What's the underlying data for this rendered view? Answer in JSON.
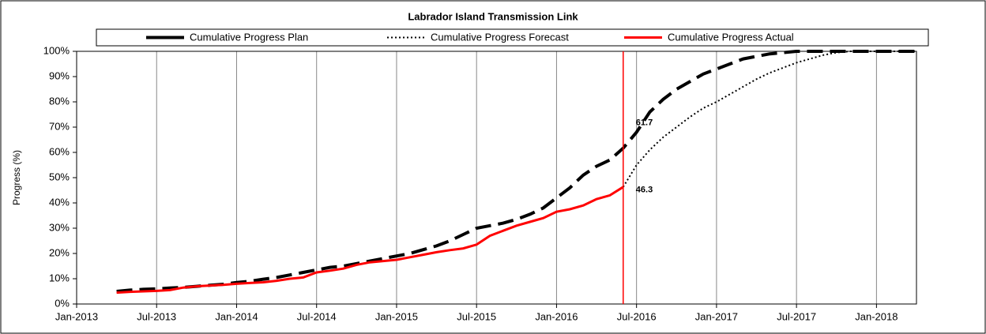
{
  "chart_data": {
    "type": "line",
    "title": "Labrador Island Transmission Link",
    "y_label": "Progress (%)",
    "x": [
      "2013-04",
      "2013-05",
      "2013-06",
      "2013-07",
      "2013-08",
      "2013-09",
      "2013-10",
      "2013-11",
      "2013-12",
      "2014-01",
      "2014-02",
      "2014-03",
      "2014-04",
      "2014-05",
      "2014-06",
      "2014-07",
      "2014-08",
      "2014-09",
      "2014-10",
      "2014-11",
      "2014-12",
      "2015-01",
      "2015-02",
      "2015-03",
      "2015-04",
      "2015-05",
      "2015-06",
      "2015-07",
      "2015-08",
      "2015-09",
      "2015-10",
      "2015-11",
      "2015-12",
      "2016-01",
      "2016-02",
      "2016-03",
      "2016-04",
      "2016-05",
      "2016-06",
      "2016-07",
      "2016-08",
      "2016-09",
      "2016-10",
      "2016-11",
      "2016-12",
      "2017-01",
      "2017-02",
      "2017-03",
      "2017-04",
      "2017-05",
      "2017-06",
      "2017-07",
      "2017-08",
      "2017-09",
      "2017-10",
      "2017-11",
      "2017-12",
      "2018-01",
      "2018-02",
      "2018-03",
      "2018-04"
    ],
    "series": [
      {
        "name": "Cumulative Progress Plan",
        "color": "#000000",
        "style": "dashed",
        "values": [
          5,
          5.5,
          5.8,
          6,
          6.3,
          6.6,
          7,
          7.4,
          7.8,
          8.5,
          9,
          9.8,
          10.5,
          11.5,
          12.5,
          13.5,
          14.5,
          15,
          16,
          17,
          18,
          19,
          20,
          21.5,
          23,
          25,
          27.5,
          30,
          31,
          32,
          33.5,
          35.5,
          38,
          42,
          46,
          51,
          54.5,
          57,
          61.7,
          68,
          76,
          81,
          85,
          88,
          91,
          93,
          95,
          97,
          98,
          99,
          99.5,
          100,
          100,
          100,
          100,
          100,
          100,
          100,
          100,
          100,
          100
        ]
      },
      {
        "name": "Cumulative Progress Forecast",
        "color": "#000000",
        "style": "dotted",
        "values": [
          null,
          null,
          null,
          null,
          null,
          null,
          null,
          null,
          null,
          null,
          null,
          null,
          null,
          null,
          null,
          null,
          null,
          null,
          null,
          null,
          null,
          null,
          null,
          null,
          null,
          null,
          null,
          null,
          null,
          null,
          null,
          null,
          null,
          null,
          null,
          null,
          null,
          null,
          46.3,
          55,
          61,
          66,
          70,
          74,
          77.5,
          80,
          83,
          86,
          89,
          91.5,
          93.5,
          95.5,
          97,
          98.5,
          99.5,
          100,
          100,
          100,
          100,
          100,
          100
        ]
      },
      {
        "name": "Cumulative Progress Actual",
        "color": "#ff0000",
        "style": "solid",
        "values": [
          4.5,
          4.8,
          5,
          5.2,
          5.5,
          6.5,
          7,
          7.3,
          7.6,
          8,
          8.3,
          8.6,
          9.2,
          10,
          10.5,
          12.5,
          13.2,
          14,
          15.5,
          16.5,
          17,
          17.5,
          18.5,
          19.5,
          20.5,
          21.3,
          22,
          23.5,
          27,
          29,
          31,
          32.5,
          34,
          36.5,
          37.5,
          39,
          41.5,
          43,
          46.3,
          null,
          null,
          null,
          null,
          null,
          null,
          null,
          null,
          null,
          null,
          null,
          null,
          null,
          null,
          null,
          null,
          null,
          null,
          null,
          null,
          null,
          null
        ]
      }
    ],
    "marker_date": "2016-06",
    "marker_color": "#ff0000",
    "xlim": [
      "2013-01",
      "2018-04"
    ],
    "xticks": [
      {
        "value": "2013-01",
        "label": "Jan-2013"
      },
      {
        "value": "2013-07",
        "label": "Jul-2013"
      },
      {
        "value": "2014-01",
        "label": "Jan-2014"
      },
      {
        "value": "2014-07",
        "label": "Jul-2014"
      },
      {
        "value": "2015-01",
        "label": "Jan-2015"
      },
      {
        "value": "2015-07",
        "label": "Jul-2015"
      },
      {
        "value": "2016-01",
        "label": "Jan-2016"
      },
      {
        "value": "2016-07",
        "label": "Jul-2016"
      },
      {
        "value": "2017-01",
        "label": "Jan-2017"
      },
      {
        "value": "2017-07",
        "label": "Jul-2017"
      },
      {
        "value": "2018-01",
        "label": "Jan-2018"
      }
    ],
    "ylim": [
      0,
      100
    ],
    "yticks": [
      {
        "value": 0,
        "label": "0%"
      },
      {
        "value": 10,
        "label": "10%"
      },
      {
        "value": 20,
        "label": "20%"
      },
      {
        "value": 30,
        "label": "30%"
      },
      {
        "value": 40,
        "label": "40%"
      },
      {
        "value": 50,
        "label": "50%"
      },
      {
        "value": 60,
        "label": "60%"
      },
      {
        "value": 70,
        "label": "70%"
      },
      {
        "value": 80,
        "label": "80%"
      },
      {
        "value": 90,
        "label": "90%"
      },
      {
        "value": 100,
        "label": "100%"
      }
    ],
    "grid": "x",
    "legend": "top"
  }
}
